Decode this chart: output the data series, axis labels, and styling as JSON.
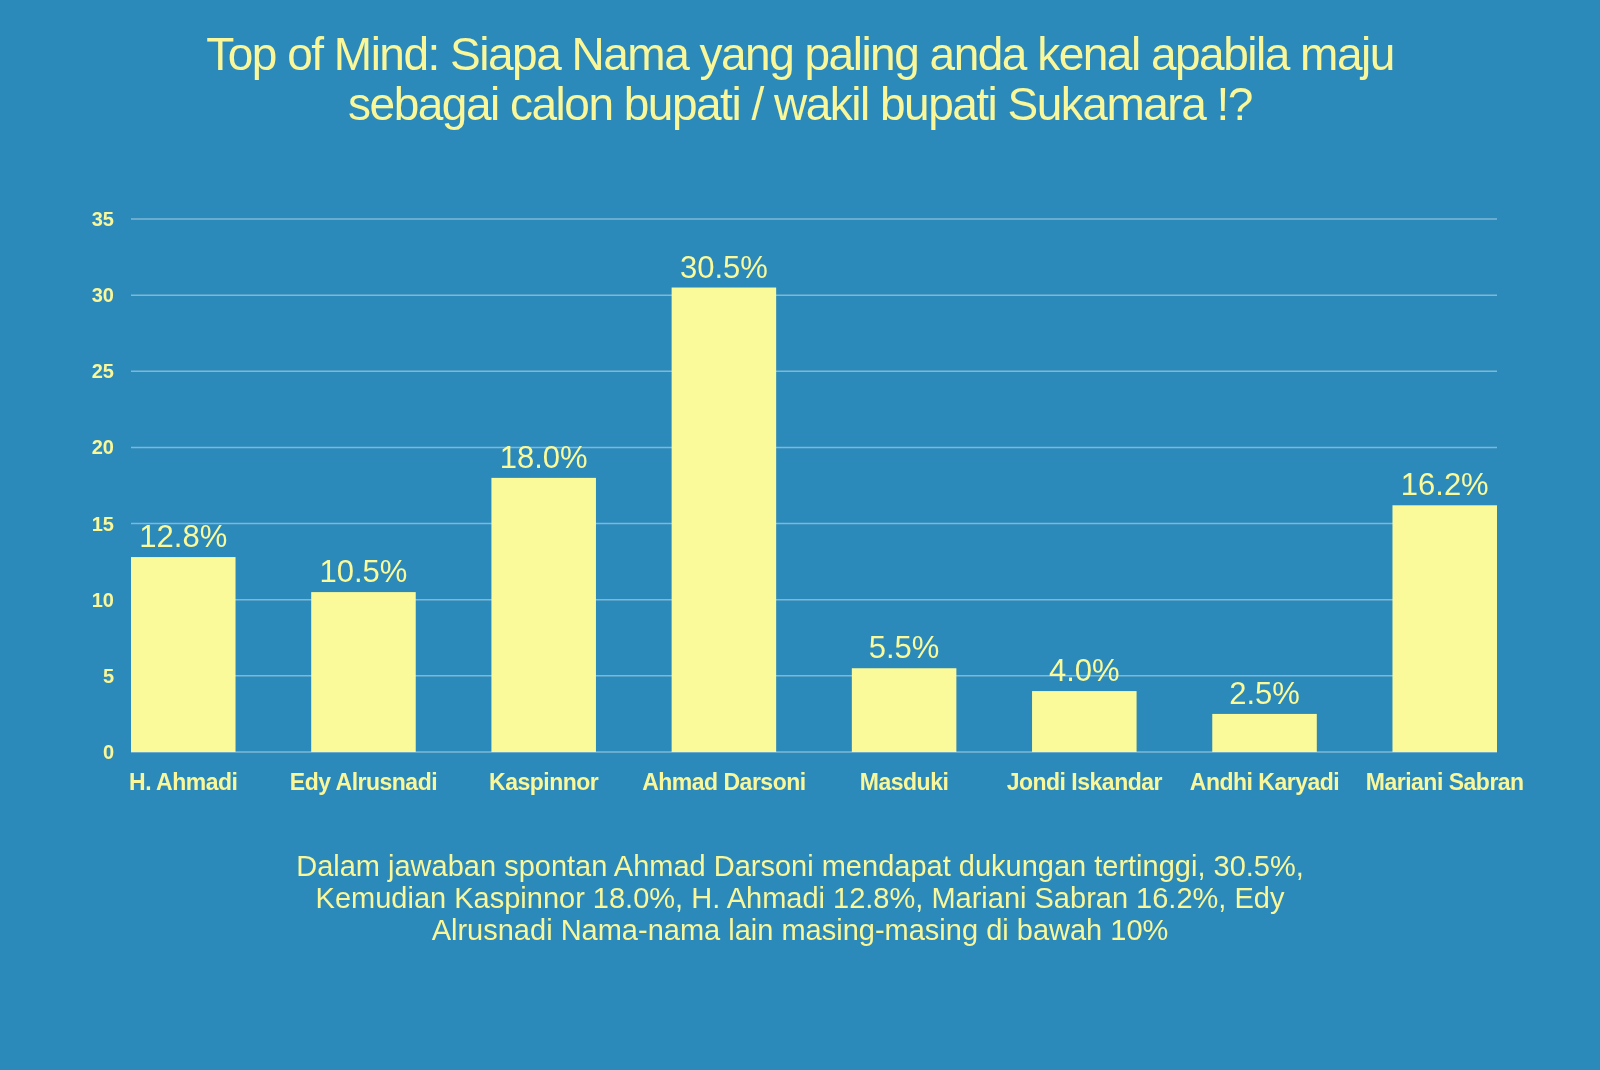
{
  "chart_data": {
    "type": "bar",
    "title": "Top of Mind: Siapa Nama yang paling anda kenal apabila maju sebagai calon bupati / wakil bupati Sukamara !?",
    "categories": [
      "H. Ahmadi",
      "Edy Alrusnadi",
      "Kaspinnor",
      "Ahmad Darsoni",
      "Masduki",
      "Jondi Iskandar",
      "Andhi Karyadi",
      "Mariani Sabran"
    ],
    "values": [
      12.8,
      10.5,
      18.0,
      30.5,
      5.5,
      4.0,
      2.5,
      16.2
    ],
    "value_labels": [
      "12.8%",
      "10.5%",
      "18.0%",
      "30.5%",
      "5.5%",
      "4.0%",
      "2.5%",
      "16.2%"
    ],
    "color": "#fbfa9a",
    "ylim": [
      0,
      35
    ],
    "yticks": [
      0,
      5,
      10,
      15,
      20,
      25,
      30,
      35
    ],
    "grid": "y",
    "annotations": [
      "Dalam jawaban spontan Ahmad Darsoni mendapat dukungan tertinggi, 30.5%, Kemudian Kaspinnor 18.0%, H. Ahmadi 12.8%, Mariani Sabran 16.2%, Edy Alrusnadi Nama-nama lain masing-masing di bawah 10%"
    ]
  }
}
